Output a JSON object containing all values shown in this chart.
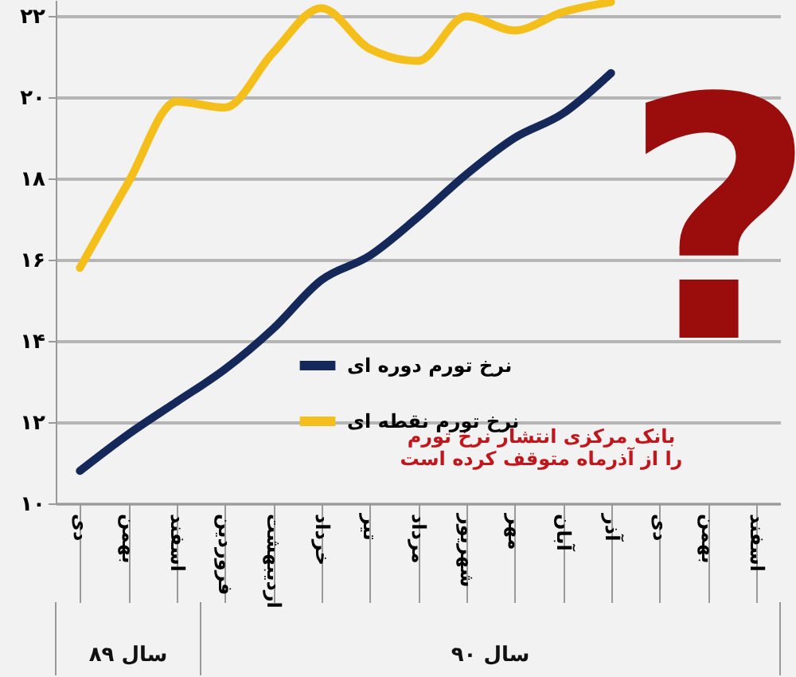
{
  "chart_data": {
    "type": "line",
    "categories": [
      "دی",
      "بهمن",
      "اسفند",
      "فروردین",
      "اردیبهشت",
      "خرداد",
      "تیر",
      "مرداد",
      "شهریور",
      "مهر",
      "آبان",
      "آذر",
      "دی",
      "بهمن",
      "اسفند"
    ],
    "series": [
      {
        "name": "نرخ تورم دوره ای",
        "color": "#14285a",
        "values": [
          10.8,
          11.7,
          12.5,
          13.3,
          14.3,
          15.5,
          16.1,
          17.05,
          18.1,
          19.0,
          19.6,
          20.6,
          null,
          null,
          null
        ]
      },
      {
        "name": "نرخ تورم نقطه ای",
        "color": "#f5bf1b",
        "values": [
          15.8,
          17.9,
          19.9,
          19.75,
          21.1,
          22.2,
          21.2,
          20.9,
          22.0,
          21.65,
          22.1,
          22.35,
          null,
          null,
          null
        ]
      }
    ],
    "ylim": [
      10,
      22.4
    ],
    "yticks": [
      {
        "value": 10,
        "label": "۱۰"
      },
      {
        "value": 12,
        "label": "۱۲"
      },
      {
        "value": 14,
        "label": "۱۴"
      },
      {
        "value": 16,
        "label": "۱۶"
      },
      {
        "value": 18,
        "label": "۱۸"
      },
      {
        "value": 20,
        "label": "۲۰"
      },
      {
        "value": 22,
        "label": "۲۲"
      }
    ],
    "grid": "y",
    "legend": "bottom",
    "marker": "none",
    "line_style": "solid",
    "annotations": [
      "سال ۸۹",
      "سال ۹۰",
      "بانک مرکزی انتشار نرخ تورم\nرا از آذرماه متوقف کرده است",
      "?"
    ]
  }
}
